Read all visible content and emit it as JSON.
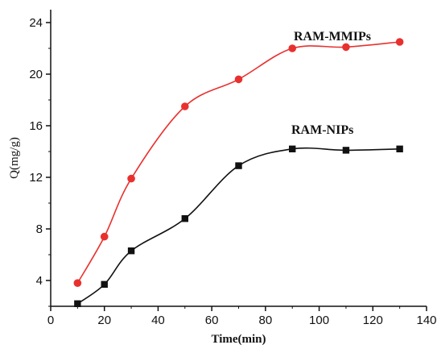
{
  "chart_data": {
    "type": "scatter",
    "title": "",
    "xlabel": "Time(min)",
    "ylabel": "Q(mg/g)",
    "xlim": [
      0,
      140
    ],
    "ylim": [
      2,
      25
    ],
    "xticks": [
      0,
      20,
      40,
      60,
      80,
      100,
      120,
      140
    ],
    "yticks": [
      4,
      8,
      12,
      16,
      20,
      24
    ],
    "grid": false,
    "series": [
      {
        "name": "RAM-MMIPs",
        "marker": "circle",
        "color": "#e8312f",
        "fit_line": true,
        "x": [
          10,
          20,
          30,
          50,
          70,
          90,
          110,
          130
        ],
        "y": [
          3.8,
          7.4,
          11.9,
          17.5,
          19.6,
          22.0,
          22.1,
          22.5
        ]
      },
      {
        "name": "RAM-NIPs",
        "marker": "square",
        "color": "#111111",
        "fit_line": true,
        "x": [
          10,
          20,
          30,
          50,
          70,
          90,
          110,
          130
        ],
        "y": [
          2.2,
          3.7,
          6.3,
          8.8,
          12.9,
          14.2,
          14.1,
          14.2
        ]
      }
    ]
  }
}
